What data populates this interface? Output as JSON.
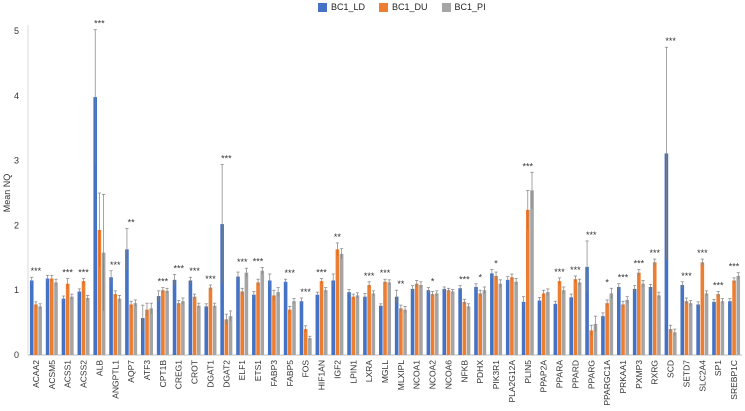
{
  "chart_data": {
    "type": "bar",
    "title": "",
    "xlabel": "",
    "ylabel": "Mean NQ",
    "ylim": [
      0,
      5
    ],
    "yticks": [
      0,
      1,
      2,
      3,
      4,
      5
    ],
    "legend_position": "top-center",
    "grid": false,
    "error_bars": true,
    "categories": [
      "ACAA2",
      "ACSM5",
      "ACSS1",
      "ACSS2",
      "ALB",
      "ANGPTL1",
      "AQP7",
      "ATF3",
      "CPT1B",
      "CREG1",
      "CROT",
      "DGAT1",
      "DGAT2",
      "ELF1",
      "ETS1",
      "FABP3",
      "FABP5",
      "FOS",
      "HIF1AN",
      "IGF2",
      "LPIN1",
      "LXRA",
      "MGLL",
      "MLXIPL",
      "NCOA1",
      "NCOA2",
      "NCOA6",
      "NFKB",
      "PDHX",
      "PIK3R1",
      "PLA2G12A",
      "PLIN5",
      "PPAP2A",
      "PPARA",
      "PPARD",
      "PPARG",
      "PPARGC1A",
      "PRKAA1",
      "PXMP3",
      "RXRG",
      "SCD",
      "SETD7",
      "SLC2A4",
      "SP1",
      "SREBP1C"
    ],
    "significance": [
      "***",
      "",
      "***",
      "***",
      "***",
      "***",
      "**",
      "",
      "***",
      "***",
      "***",
      "***",
      "***",
      "***",
      "***",
      "",
      "***",
      "***",
      "***",
      "**",
      "",
      "***",
      "***",
      "**",
      "",
      "*",
      "",
      "***",
      "*",
      "*",
      "",
      "***",
      "",
      "***",
      "***",
      "***",
      "*",
      "***",
      "***",
      "***",
      "***",
      "***",
      "***",
      "***",
      "***"
    ],
    "series": [
      {
        "name": "BC1_LD",
        "color": "#4472C4",
        "values": [
          1.15,
          1.18,
          0.87,
          0.98,
          3.98,
          1.2,
          1.63,
          0.57,
          0.91,
          1.16,
          1.15,
          0.75,
          2.02,
          1.21,
          0.93,
          1.15,
          1.13,
          0.83,
          0.93,
          1.15,
          0.97,
          0.9,
          0.76,
          0.9,
          1.02,
          1.0,
          1.02,
          1.03,
          1.05,
          1.26,
          1.16,
          0.82,
          0.84,
          0.79,
          0.89,
          1.36,
          0.6,
          1.05,
          1.02,
          1.05,
          3.11,
          1.08,
          0.78,
          0.82,
          0.83
        ],
        "errors": [
          0.05,
          0.05,
          0.04,
          0.04,
          1.04,
          0.1,
          0.32,
          0.2,
          0.08,
          0.08,
          0.05,
          0.04,
          0.92,
          0.07,
          0.05,
          0.1,
          0.04,
          0.05,
          0.04,
          0.1,
          0.04,
          0.05,
          0.03,
          0.1,
          0.05,
          0.04,
          0.03,
          0.04,
          0.05,
          0.06,
          0.05,
          0.08,
          0.05,
          0.04,
          0.05,
          0.4,
          0.05,
          0.05,
          0.05,
          0.04,
          1.64,
          0.05,
          0.04,
          0.04,
          0.04
        ]
      },
      {
        "name": "BC1_DU",
        "color": "#ED7D31",
        "values": [
          0.78,
          1.18,
          1.1,
          1.14,
          1.93,
          0.94,
          0.78,
          0.7,
          1.0,
          0.8,
          0.9,
          1.04,
          0.55,
          0.98,
          1.12,
          0.92,
          0.7,
          0.4,
          1.14,
          1.63,
          0.9,
          1.08,
          1.13,
          0.72,
          1.1,
          0.94,
          1.0,
          0.82,
          0.95,
          1.22,
          1.2,
          2.24,
          0.95,
          1.14,
          1.17,
          0.38,
          0.8,
          0.78,
          1.27,
          1.43,
          0.4,
          0.83,
          1.43,
          0.94,
          1.15
        ],
        "errors": [
          0.04,
          0.05,
          0.08,
          0.04,
          0.57,
          0.05,
          0.05,
          0.1,
          0.04,
          0.04,
          0.04,
          0.04,
          0.08,
          0.05,
          0.05,
          0.08,
          0.05,
          0.05,
          0.04,
          0.1,
          0.04,
          0.05,
          0.04,
          0.05,
          0.05,
          0.04,
          0.03,
          0.04,
          0.05,
          0.06,
          0.05,
          0.3,
          0.05,
          0.05,
          0.05,
          0.08,
          0.05,
          0.05,
          0.05,
          0.05,
          0.06,
          0.05,
          0.05,
          0.04,
          0.04
        ]
      },
      {
        "name": "BC1_PI",
        "color": "#A5A5A5",
        "values": [
          0.75,
          1.12,
          0.9,
          0.88,
          1.58,
          0.87,
          0.8,
          0.72,
          0.99,
          0.83,
          0.76,
          0.76,
          0.6,
          1.27,
          1.3,
          0.97,
          0.83,
          0.26,
          1.0,
          1.56,
          0.92,
          0.95,
          1.12,
          0.7,
          1.08,
          0.95,
          0.98,
          0.75,
          1.0,
          1.1,
          1.13,
          2.54,
          0.97,
          1.0,
          1.12,
          0.48,
          0.95,
          0.85,
          1.1,
          0.92,
          0.35,
          0.8,
          0.95,
          0.83,
          1.22
        ],
        "errors": [
          0.04,
          0.05,
          0.04,
          0.04,
          0.9,
          0.05,
          0.05,
          0.08,
          0.04,
          0.05,
          0.04,
          0.04,
          0.08,
          0.07,
          0.05,
          0.07,
          0.04,
          0.03,
          0.04,
          0.08,
          0.04,
          0.04,
          0.04,
          0.05,
          0.05,
          0.04,
          0.03,
          0.04,
          0.05,
          0.06,
          0.05,
          0.28,
          0.05,
          0.05,
          0.05,
          0.12,
          0.08,
          0.05,
          0.05,
          0.05,
          0.05,
          0.04,
          0.04,
          0.04,
          0.05
        ]
      }
    ]
  }
}
